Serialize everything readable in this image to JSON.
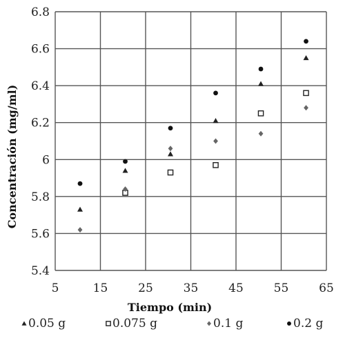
{
  "chart_data": {
    "type": "scatter",
    "title": "",
    "xlabel": "Tiempo (min)",
    "ylabel": "Concentración (mg/ml)",
    "xlim": [
      5,
      65
    ],
    "ylim": [
      5.4,
      6.8
    ],
    "xticks": [
      5,
      15,
      25,
      35,
      45,
      55,
      65
    ],
    "yticks": [
      5.4,
      5.6,
      5.8,
      6,
      6.2,
      6.4,
      6.6,
      6.8
    ],
    "grid": true,
    "legend_position": "bottom",
    "series": [
      {
        "name": "0.05 g",
        "marker": "triangle",
        "color": "#222222",
        "points": [
          [
            10.5,
            5.73
          ],
          [
            20.5,
            5.94
          ],
          [
            30.5,
            6.03
          ],
          [
            40.5,
            6.21
          ],
          [
            50.5,
            6.41
          ],
          [
            60.5,
            6.55
          ]
        ]
      },
      {
        "name": "0.075 g",
        "marker": "square-open",
        "color": "#222222",
        "points": [
          [
            20.5,
            5.82
          ],
          [
            30.5,
            5.93
          ],
          [
            40.5,
            5.97
          ],
          [
            50.5,
            6.25
          ],
          [
            60.5,
            6.36
          ]
        ]
      },
      {
        "name": "0.1 g",
        "marker": "diamond",
        "color": "#666666",
        "points": [
          [
            10.5,
            5.62
          ],
          [
            20.5,
            5.84
          ],
          [
            30.5,
            6.06
          ],
          [
            40.5,
            6.1
          ],
          [
            50.5,
            6.14
          ],
          [
            60.5,
            6.28
          ]
        ]
      },
      {
        "name": "0.2 g",
        "marker": "circle",
        "color": "#111111",
        "points": [
          [
            10.5,
            5.87
          ],
          [
            20.5,
            5.99
          ],
          [
            30.5,
            6.17
          ],
          [
            40.5,
            6.36
          ],
          [
            50.5,
            6.49
          ],
          [
            60.5,
            6.64
          ]
        ]
      }
    ]
  }
}
